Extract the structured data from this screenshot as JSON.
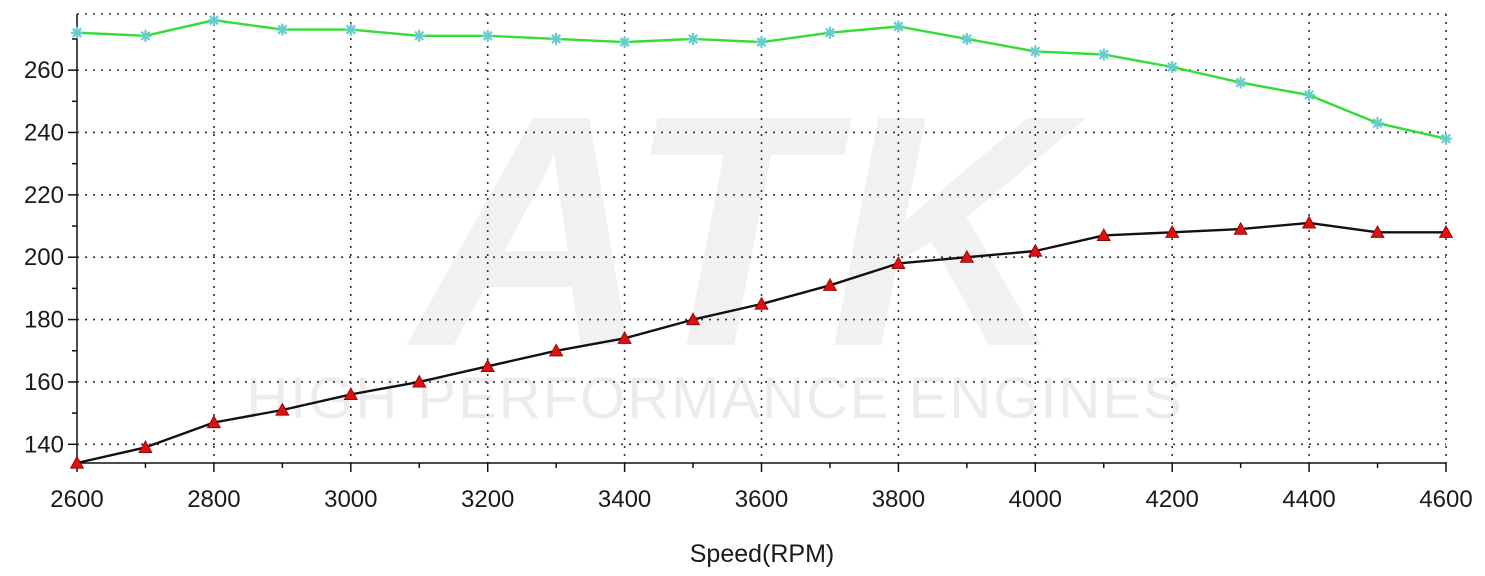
{
  "chart_data": {
    "type": "line",
    "xlabel": "Speed(RPM)",
    "ylabel": "",
    "xlim": [
      2600,
      4600
    ],
    "ylim": [
      134,
      278
    ],
    "x_ticks": [
      2600,
      2800,
      3000,
      3200,
      3400,
      3600,
      3800,
      4000,
      4200,
      4400,
      4600
    ],
    "y_ticks": [
      140,
      160,
      180,
      200,
      220,
      240,
      260
    ],
    "grid": true,
    "x": [
      2600,
      2700,
      2800,
      2900,
      3000,
      3100,
      3200,
      3300,
      3400,
      3500,
      3600,
      3700,
      3800,
      3900,
      4000,
      4100,
      4200,
      4300,
      4400,
      4500,
      4600
    ],
    "series": [
      {
        "color": "#33dd33",
        "marker_color": "#66cccc",
        "marker": "star",
        "values": [
          272,
          271,
          276,
          273,
          273,
          271,
          271,
          270,
          269,
          270,
          269,
          272,
          274,
          270,
          266,
          265,
          261,
          256,
          252,
          243,
          238
        ]
      },
      {
        "color": "#111111",
        "marker_color": "#dd1111",
        "marker": "triangle",
        "values": [
          134,
          139,
          147,
          151,
          156,
          160,
          165,
          170,
          174,
          180,
          185,
          191,
          198,
          200,
          202,
          207,
          208,
          209,
          211,
          208,
          208
        ]
      }
    ]
  },
  "watermark": {
    "logo": "ATK",
    "tagline": "HIGH PERFORMANCE ENGINES"
  }
}
